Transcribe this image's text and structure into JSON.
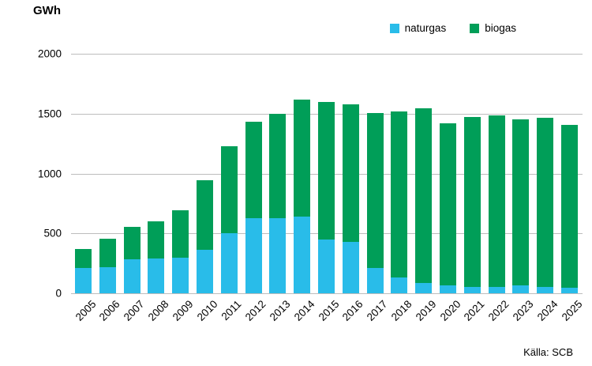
{
  "title": "GWh",
  "legend": {
    "items": [
      {
        "label": "naturgas",
        "color": "#29BCE9"
      },
      {
        "label": "biogas",
        "color": "#009E58"
      }
    ]
  },
  "source": "Källa: SCB",
  "colors": {
    "naturgas": "#29BCE9",
    "biogas": "#009E58",
    "gridline": "#bdbdbd",
    "text": "#000000"
  },
  "chart_data": {
    "type": "bar",
    "stacked": true,
    "title": "GWh",
    "ylabel": "GWh",
    "xlabel": "",
    "ylim": [
      0,
      2000
    ],
    "yticks": [
      0,
      500,
      1000,
      1500,
      2000
    ],
    "grid": true,
    "legend_position": "top-right",
    "categories": [
      "2005",
      "2006",
      "2007",
      "2008",
      "2009",
      "2010",
      "2011",
      "2012",
      "2013",
      "2014",
      "2015",
      "2016",
      "2017",
      "2018",
      "2019",
      "2020",
      "2021",
      "2022",
      "2023",
      "2024",
      "2025"
    ],
    "series": [
      {
        "name": "naturgas",
        "color": "#29BCE9",
        "values": [
          210,
          220,
          285,
          290,
          295,
          365,
          500,
          630,
          625,
          640,
          450,
          430,
          210,
          130,
          85,
          65,
          50,
          55,
          65,
          55,
          45
        ]
      },
      {
        "name": "biogas",
        "color": "#009E58",
        "values": [
          160,
          235,
          270,
          310,
          395,
          580,
          730,
          805,
          875,
          980,
          1150,
          1150,
          1295,
          1390,
          1460,
          1355,
          1425,
          1430,
          1390,
          1410,
          1360
        ]
      }
    ],
    "totals": [
      370,
      455,
      555,
      600,
      690,
      945,
      1230,
      1435,
      1500,
      1620,
      1600,
      1580,
      1505,
      1520,
      1545,
      1420,
      1475,
      1485,
      1455,
      1465,
      1405
    ]
  }
}
